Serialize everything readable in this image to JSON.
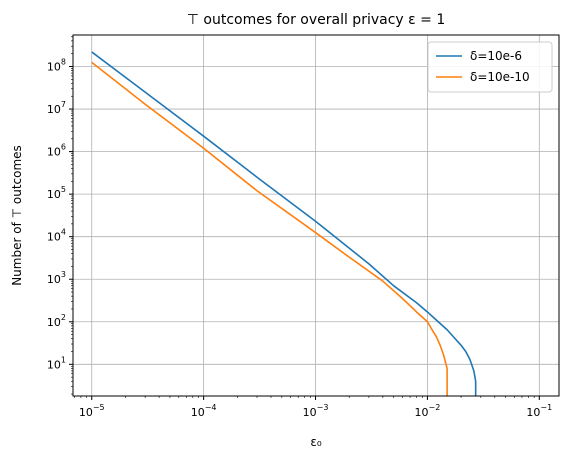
{
  "chart_data": {
    "type": "line",
    "title": "⊤ outcomes for overall privacy ε = 1",
    "xlabel": "ε₀",
    "ylabel": "Number of ⊤ outcomes",
    "xscale": "log",
    "yscale": "log",
    "xlim": [
      6.8e-06,
      0.15
    ],
    "ylim": [
      1.8,
      550000000
    ],
    "grid": true,
    "legend_position": "top-right",
    "x_ticks": [
      {
        "value": 1e-05,
        "base": "10",
        "exp": "−5"
      },
      {
        "value": 0.0001,
        "base": "10",
        "exp": "−4"
      },
      {
        "value": 0.001,
        "base": "10",
        "exp": "−3"
      },
      {
        "value": 0.01,
        "base": "10",
        "exp": "−2"
      },
      {
        "value": 0.1,
        "base": "10",
        "exp": "−1"
      }
    ],
    "y_ticks": [
      {
        "value": 10,
        "base": "10",
        "exp": "1"
      },
      {
        "value": 100,
        "base": "10",
        "exp": "2"
      },
      {
        "value": 1000,
        "base": "10",
        "exp": "3"
      },
      {
        "value": 10000,
        "base": "10",
        "exp": "4"
      },
      {
        "value": 100000,
        "base": "10",
        "exp": "5"
      },
      {
        "value": 1000000,
        "base": "10",
        "exp": "6"
      },
      {
        "value": 10000000,
        "base": "10",
        "exp": "7"
      },
      {
        "value": 100000000,
        "base": "10",
        "exp": "8"
      }
    ],
    "series": [
      {
        "name": "δ=10e-6",
        "color": "#1f77b4",
        "points": [
          [
            1e-05,
            220000000
          ],
          [
            3e-05,
            25000000
          ],
          [
            0.0001,
            2300000
          ],
          [
            0.0003,
            250000
          ],
          [
            0.001,
            23000
          ],
          [
            0.003,
            2300
          ],
          [
            0.005,
            700
          ],
          [
            0.008,
            280
          ],
          [
            0.01,
            170
          ],
          [
            0.012,
            110
          ],
          [
            0.015,
            65
          ],
          [
            0.018,
            38
          ],
          [
            0.02,
            28
          ],
          [
            0.022,
            20
          ],
          [
            0.024,
            13
          ],
          [
            0.026,
            7
          ],
          [
            0.027,
            4
          ],
          [
            0.027,
            1
          ]
        ]
      },
      {
        "name": "δ=10e-10",
        "color": "#ff7f0e",
        "points": [
          [
            1e-05,
            125000000
          ],
          [
            3e-05,
            13000000
          ],
          [
            0.0001,
            1200000
          ],
          [
            0.0003,
            120000
          ],
          [
            0.001,
            12500
          ],
          [
            0.002,
            3300
          ],
          [
            0.004,
            900
          ],
          [
            0.006,
            350
          ],
          [
            0.008,
            170
          ],
          [
            0.01,
            100
          ],
          [
            0.011,
            65
          ],
          [
            0.012,
            45
          ],
          [
            0.013,
            28
          ],
          [
            0.014,
            16
          ],
          [
            0.015,
            8
          ],
          [
            0.015,
            1
          ]
        ]
      }
    ]
  }
}
